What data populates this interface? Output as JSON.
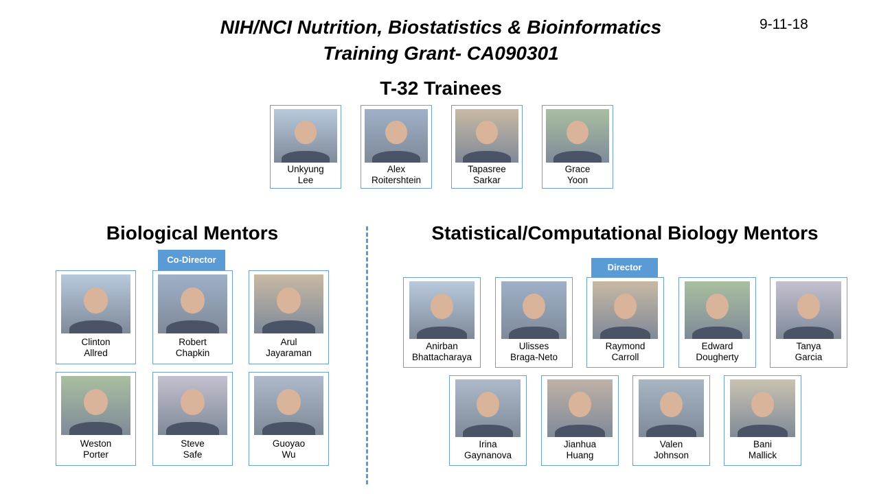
{
  "header": {
    "title_line1": "NIH/NCI Nutrition, Biostatistics & Bioinformatics",
    "title_line2": "Training Grant- CA090301",
    "date": "9-11-18"
  },
  "trainees": {
    "heading": "T-32 Trainees",
    "people": [
      {
        "first": "Unkyung",
        "last": "Lee"
      },
      {
        "first": "Alex",
        "last": "Roitershtein"
      },
      {
        "first": "Tapasree",
        "last": "Sarkar"
      },
      {
        "first": "Grace",
        "last": "Yoon"
      }
    ]
  },
  "biological": {
    "heading": "Biological Mentors",
    "codirector_label": "Co-Director",
    "people": [
      {
        "first": "Clinton",
        "last": "Allred"
      },
      {
        "first": "Robert",
        "last": "Chapkin"
      },
      {
        "first": "Arul",
        "last": "Jayaraman"
      },
      {
        "first": "Weston",
        "last": "Porter"
      },
      {
        "first": "Steve",
        "last": "Safe"
      },
      {
        "first": "Guoyao",
        "last": "Wu"
      }
    ]
  },
  "statistical": {
    "heading": "Statistical/Computational Biology Mentors",
    "director_label": "Director",
    "people": [
      {
        "first": "Anirban",
        "last": "Bhattacharaya"
      },
      {
        "first": "Ulisses",
        "last": "Braga-Neto"
      },
      {
        "first": "Raymond",
        "last": "Carroll"
      },
      {
        "first": "Edward",
        "last": "Dougherty"
      },
      {
        "first": "Tanya",
        "last": "Garcia"
      },
      {
        "first": "Irina",
        "last": "Gaynanova"
      },
      {
        "first": "Jianhua",
        "last": "Huang"
      },
      {
        "first": "Valen",
        "last": "Johnson"
      },
      {
        "first": "Bani",
        "last": "Mallick"
      }
    ]
  },
  "colors": {
    "accent": "#5b9bd5",
    "card_border": "#6e9fcc"
  }
}
